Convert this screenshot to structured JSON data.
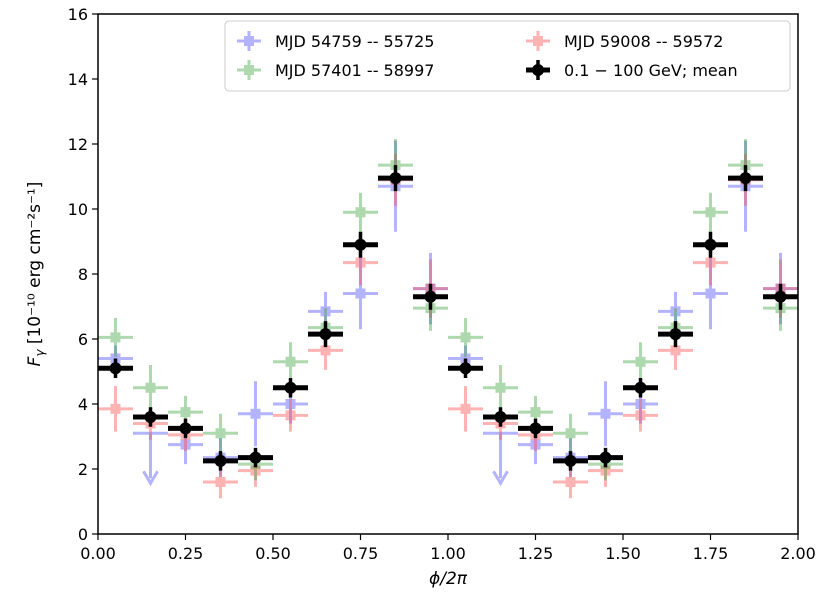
{
  "chart_data": {
    "type": "scatter",
    "xlabel": "ϕ/2π",
    "ylabel": "Fγ [10⁻¹⁰ erg cm⁻²s⁻¹]",
    "ylabel_main": "F",
    "ylabel_sub": "γ",
    "ylabel_rest": " [10⁻¹⁰ erg cm⁻²s⁻¹]",
    "xlim": [
      0.0,
      2.0
    ],
    "ylim": [
      0,
      16
    ],
    "x_ticks": [
      "0.00",
      "0.25",
      "0.50",
      "0.75",
      "1.00",
      "1.25",
      "1.50",
      "1.75",
      "2.00"
    ],
    "y_ticks": [
      "0",
      "2",
      "4",
      "6",
      "8",
      "10",
      "12",
      "14",
      "16"
    ],
    "legend_position": "top-right",
    "x": [
      0.05,
      0.15,
      0.25,
      0.35,
      0.45,
      0.55,
      0.65,
      0.75,
      0.85,
      0.95
    ],
    "x_err": 0.05,
    "series": [
      {
        "name": "MJD 54759 -- 55725",
        "color": "#4b4bff",
        "style": "faint",
        "values": [
          5.4,
          3.1,
          2.75,
          2.35,
          3.7,
          4.0,
          6.85,
          7.4,
          10.7,
          7.55
        ],
        "errors": [
          0.4,
          0.5,
          0.6,
          0.6,
          1.0,
          0.6,
          0.6,
          1.1,
          1.4,
          1.1
        ],
        "upper_limit_index": 1
      },
      {
        "name": "MJD 59008 -- 59572",
        "color": "#ff4b4b",
        "style": "faint",
        "values": [
          3.85,
          3.4,
          3.05,
          1.6,
          1.95,
          3.65,
          5.65,
          8.35,
          10.9,
          7.55
        ],
        "errors": [
          0.7,
          0.5,
          0.5,
          0.5,
          0.5,
          0.5,
          0.6,
          0.7,
          0.8,
          0.9
        ]
      },
      {
        "name": "MJD 57401 -- 58997",
        "color": "#3fa43f",
        "style": "faint",
        "values": [
          6.05,
          4.5,
          3.75,
          3.1,
          2.15,
          5.3,
          6.35,
          9.9,
          11.35,
          6.95
        ],
        "errors": [
          0.6,
          0.7,
          0.5,
          0.6,
          0.5,
          0.6,
          0.6,
          0.6,
          0.8,
          0.7
        ]
      },
      {
        "name": "0.1 − 100 GeV; mean",
        "color": "#000000",
        "style": "bold",
        "values": [
          5.1,
          3.6,
          3.25,
          2.25,
          2.35,
          4.5,
          6.15,
          8.9,
          10.95,
          7.3
        ],
        "errors": [
          0.3,
          0.3,
          0.3,
          0.3,
          0.3,
          0.3,
          0.4,
          0.4,
          0.4,
          0.4
        ]
      }
    ],
    "legend": [
      {
        "label": "MJD 54759 -- 55725",
        "color": "#4b4bff",
        "style": "faint"
      },
      {
        "label": "MJD 59008 -- 59572",
        "color": "#ff4b4b",
        "style": "faint"
      },
      {
        "label": "MJD 57401 -- 58997",
        "color": "#3fa43f",
        "style": "faint"
      },
      {
        "label": "0.1 − 100 GeV; mean",
        "color": "#000000",
        "style": "bold"
      }
    ]
  }
}
